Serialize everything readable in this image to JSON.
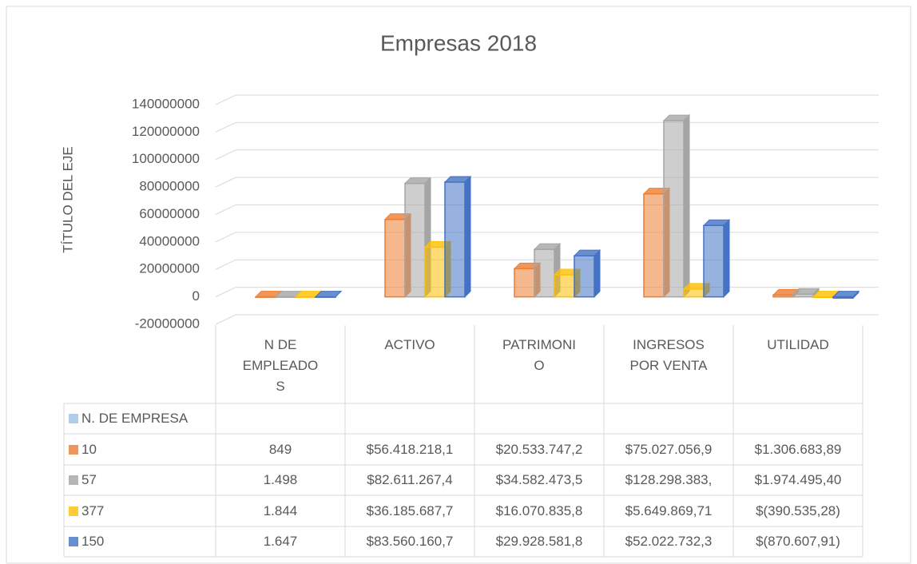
{
  "chart_data": {
    "type": "bar3d",
    "title": "Empresas 2018",
    "y_label": "TÍTULO DEL EJE",
    "categories": [
      "N DE EMPLEADOS",
      "ACTIVO",
      "PATRIMONIO",
      "INGRESOS POR VENTA",
      "UTILIDAD"
    ],
    "series": [
      {
        "name": "N. DE EMPRESA",
        "color": "#9dc3e6",
        "values": [
          null,
          null,
          null,
          null,
          null
        ]
      },
      {
        "name": "10",
        "color": "#ed7d31",
        "values": [
          849,
          56418218.1,
          20533747.2,
          75027056.9,
          1306683.89
        ],
        "value_labels": [
          "849",
          "$56.418.218,1",
          "$20.533.747,2",
          "$75.027.056,9",
          "$1.306.683,89"
        ]
      },
      {
        "name": "57",
        "color": "#a5a5a5",
        "values": [
          1498,
          82611267.4,
          34582473.5,
          128298383,
          1974495.4
        ],
        "value_labels": [
          "1.498",
          "$82.611.267,4",
          "$34.582.473,5",
          "$128.298.383,",
          "$1.974.495,40"
        ]
      },
      {
        "name": "377",
        "color": "#ffc000",
        "values": [
          1844,
          36185687.7,
          16070835.8,
          5649869.71,
          -390535.28
        ],
        "value_labels": [
          "1.844",
          "$36.185.687,7",
          "$16.070.835,8",
          "$5.649.869,71",
          "$(390.535,28)"
        ]
      },
      {
        "name": "150",
        "color": "#4472c4",
        "values": [
          1647,
          83560160.7,
          29928581.8,
          52022732.3,
          -870607.91
        ],
        "value_labels": [
          "1.647",
          "$83.560.160,7",
          "$29.928.581,8",
          "$52.022.732,3",
          "$(870.607,91)"
        ]
      }
    ],
    "ylim": [
      -20000000,
      140000000
    ],
    "yticks": [
      -20000000,
      0,
      20000000,
      40000000,
      60000000,
      80000000,
      100000000,
      120000000,
      140000000
    ],
    "grid": true
  }
}
